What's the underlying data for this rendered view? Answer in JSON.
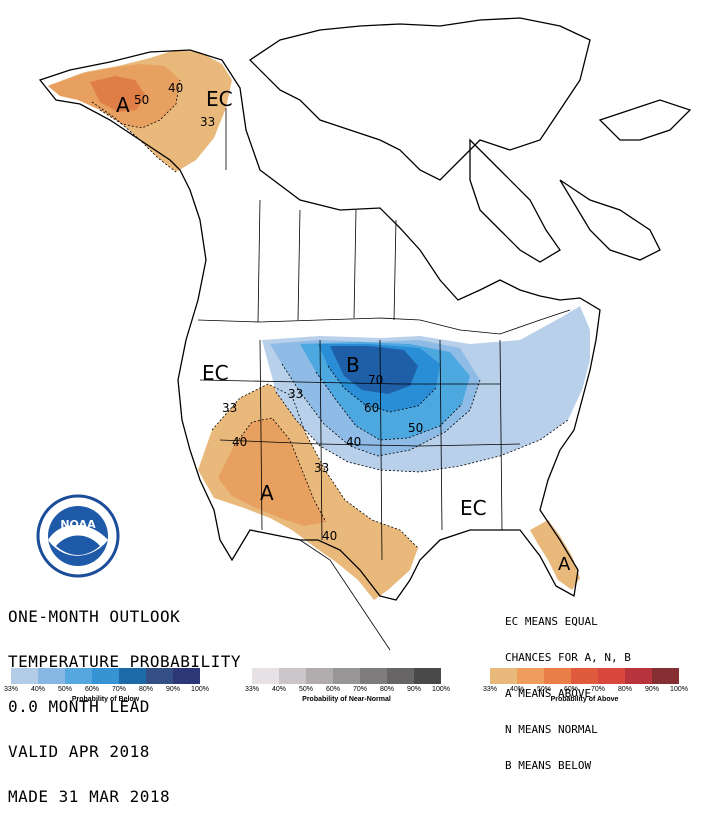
{
  "title": {
    "line1": "ONE-MONTH OUTLOOK",
    "line2": "TEMPERATURE PROBABILITY",
    "line3": "0.0 MONTH LEAD",
    "line4": "VALID APR 2018",
    "line5": "MADE 31 MAR 2018"
  },
  "notes": {
    "line1": "EC MEANS EQUAL",
    "line2": "CHANCES FOR A, N, B",
    "line3": "A MEANS ABOVE",
    "line4": "N MEANS NORMAL",
    "line5": "B MEANS BELOW"
  },
  "map_labels": {
    "ec_alaska": "EC",
    "ec_west": "EC",
    "ec_southeast": "EC",
    "a_alaska": "A",
    "a_southwest": "A",
    "a_florida": "A",
    "b_north": "B",
    "c40_alaska": "40",
    "c50_alaska": "50",
    "c33_alaska": "33",
    "c33_west": "33",
    "c40_west": "40",
    "c40_texas": "40",
    "c33_south": "33",
    "c33_plains": "33",
    "c40_plains": "40",
    "c50_plains": "50",
    "c60_plains": "60",
    "c70_plains": "70"
  },
  "logo": {
    "text": "NOAA"
  },
  "legend": {
    "below": {
      "title": "Probability of Below",
      "ticks": [
        "33%",
        "40%",
        "50%",
        "60%",
        "70%",
        "80%",
        "90%",
        "100%"
      ],
      "colors": [
        "#b3cde8",
        "#86b8e3",
        "#55a7df",
        "#3794d4",
        "#1d6aa8",
        "#334f86",
        "#2b3776"
      ]
    },
    "normal": {
      "title": "Probability of Near-Normal",
      "ticks": [
        "33%",
        "40%",
        "50%",
        "60%",
        "70%",
        "80%",
        "90%",
        "100%"
      ],
      "colors": [
        "#e6e1e4",
        "#cac5c8",
        "#b1adaf",
        "#989597",
        "#7f7c7e",
        "#676566",
        "#4a494a"
      ]
    },
    "above": {
      "title": "Probability of Above",
      "ticks": [
        "33%",
        "40%",
        "50%",
        "60%",
        "70%",
        "80%",
        "90%",
        "100%"
      ],
      "colors": [
        "#e9b97b",
        "#f09c5c",
        "#e97e46",
        "#e05a3e",
        "#d8483f",
        "#b7343c",
        "#862f33"
      ]
    }
  },
  "colors": {
    "above_33": "#e9b97b",
    "above_40": "#e8a060",
    "below_33": "#b8d0ea",
    "below_40": "#8fbce6",
    "below_50": "#4ea8e0",
    "below_60": "#2a8ed6",
    "below_70": "#1f5fa8"
  }
}
